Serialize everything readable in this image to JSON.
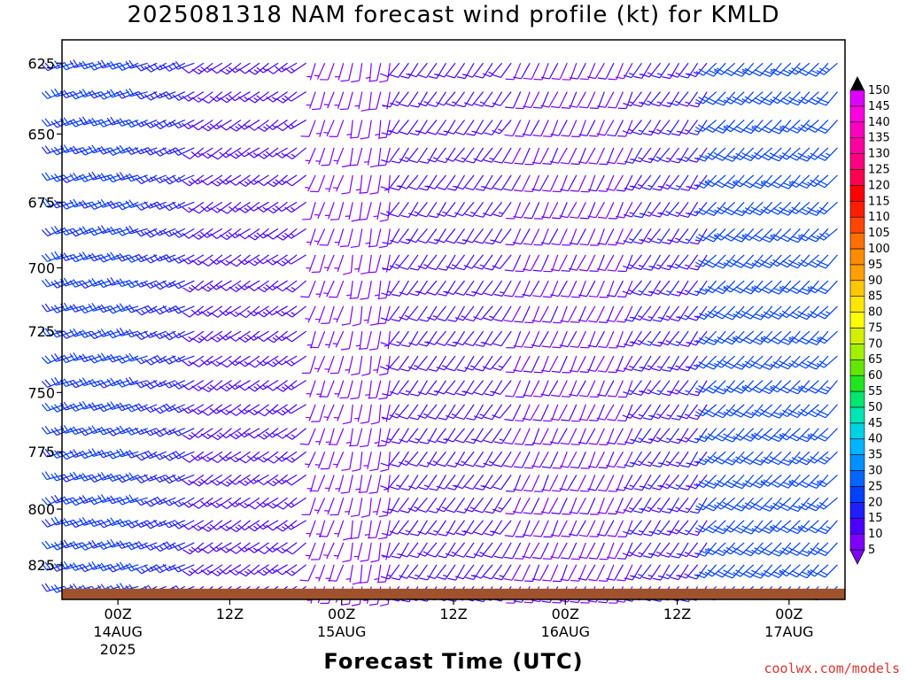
{
  "chart_data": {
    "type": "wind-barb profile",
    "title": "2025081318 NAM forecast wind profile (kt) for KMLD",
    "xlabel": "Forecast Time (UTC)",
    "ylabel": "",
    "y_ticks": [
      625,
      650,
      675,
      700,
      725,
      750,
      775,
      800,
      825
    ],
    "ylim": [
      841,
      617
    ],
    "x_ticks": [
      {
        "hour": 6,
        "label": "00Z",
        "sub1": "14AUG",
        "sub2": "2025"
      },
      {
        "hour": 18,
        "label": "12Z",
        "sub1": "",
        "sub2": ""
      },
      {
        "hour": 30,
        "label": "00Z",
        "sub1": "15AUG",
        "sub2": ""
      },
      {
        "hour": 42,
        "label": "12Z",
        "sub1": "",
        "sub2": ""
      },
      {
        "hour": 54,
        "label": "00Z",
        "sub1": "16AUG",
        "sub2": ""
      },
      {
        "hour": 66,
        "label": "12Z",
        "sub1": "",
        "sub2": ""
      },
      {
        "hour": 78,
        "label": "00Z",
        "sub1": "17AUG",
        "sub2": ""
      }
    ],
    "xlim": [
      0,
      84
    ],
    "levels_mb": [
      625,
      635,
      645,
      655,
      665,
      675,
      685,
      695,
      705,
      715,
      725,
      735,
      745,
      755,
      765,
      775,
      785,
      795,
      805,
      815,
      825,
      835
    ],
    "wind_regimes": [
      {
        "hours": [
          0,
          9
        ],
        "direction_deg": 250,
        "speed_kt": 20
      },
      {
        "hours": [
          10,
          14
        ],
        "direction_deg": 245,
        "speed_kt": 17
      },
      {
        "hours": [
          15,
          26
        ],
        "direction_deg": 235,
        "speed_kt": 13
      },
      {
        "hours": [
          27,
          30
        ],
        "direction_deg": 200,
        "speed_kt": 7
      },
      {
        "hours": [
          31,
          35
        ],
        "direction_deg": 190,
        "speed_kt": 8
      },
      {
        "hours": [
          36,
          48
        ],
        "direction_deg": 215,
        "speed_kt": 12
      },
      {
        "hours": [
          49,
          61
        ],
        "direction_deg": 205,
        "speed_kt": 9
      },
      {
        "hours": [
          62,
          69
        ],
        "direction_deg": 215,
        "speed_kt": 14
      },
      {
        "hours": [
          70,
          84
        ],
        "direction_deg": 225,
        "speed_kt": 22
      }
    ],
    "terrain": {
      "color": "#a0522d",
      "surface_mb": 836
    },
    "colorbar": {
      "min": 5,
      "max": 150,
      "step": 5,
      "labels": [
        150,
        145,
        140,
        135,
        130,
        125,
        120,
        115,
        110,
        105,
        100,
        95,
        90,
        85,
        80,
        75,
        70,
        65,
        60,
        55,
        50,
        45,
        40,
        35,
        30,
        25,
        20,
        15,
        10,
        5
      ],
      "colors": [
        "#8000ff",
        "#4b00ff",
        "#1e1eff",
        "#0040ff",
        "#0066ff",
        "#0090ff",
        "#00b4ff",
        "#00d2e6",
        "#00e6b4",
        "#00e66e",
        "#20e620",
        "#64e600",
        "#a0f000",
        "#d2f000",
        "#ffff00",
        "#ffe600",
        "#ffc800",
        "#ffa000",
        "#ff8c00",
        "#ff7000",
        "#ff4600",
        "#ff1e00",
        "#ff0000",
        "#ff0050",
        "#ff0080",
        "#ff00a0",
        "#ff00c0",
        "#ff00e0",
        "#e000ff"
      ]
    }
  },
  "credit": "coolwx.com/models"
}
